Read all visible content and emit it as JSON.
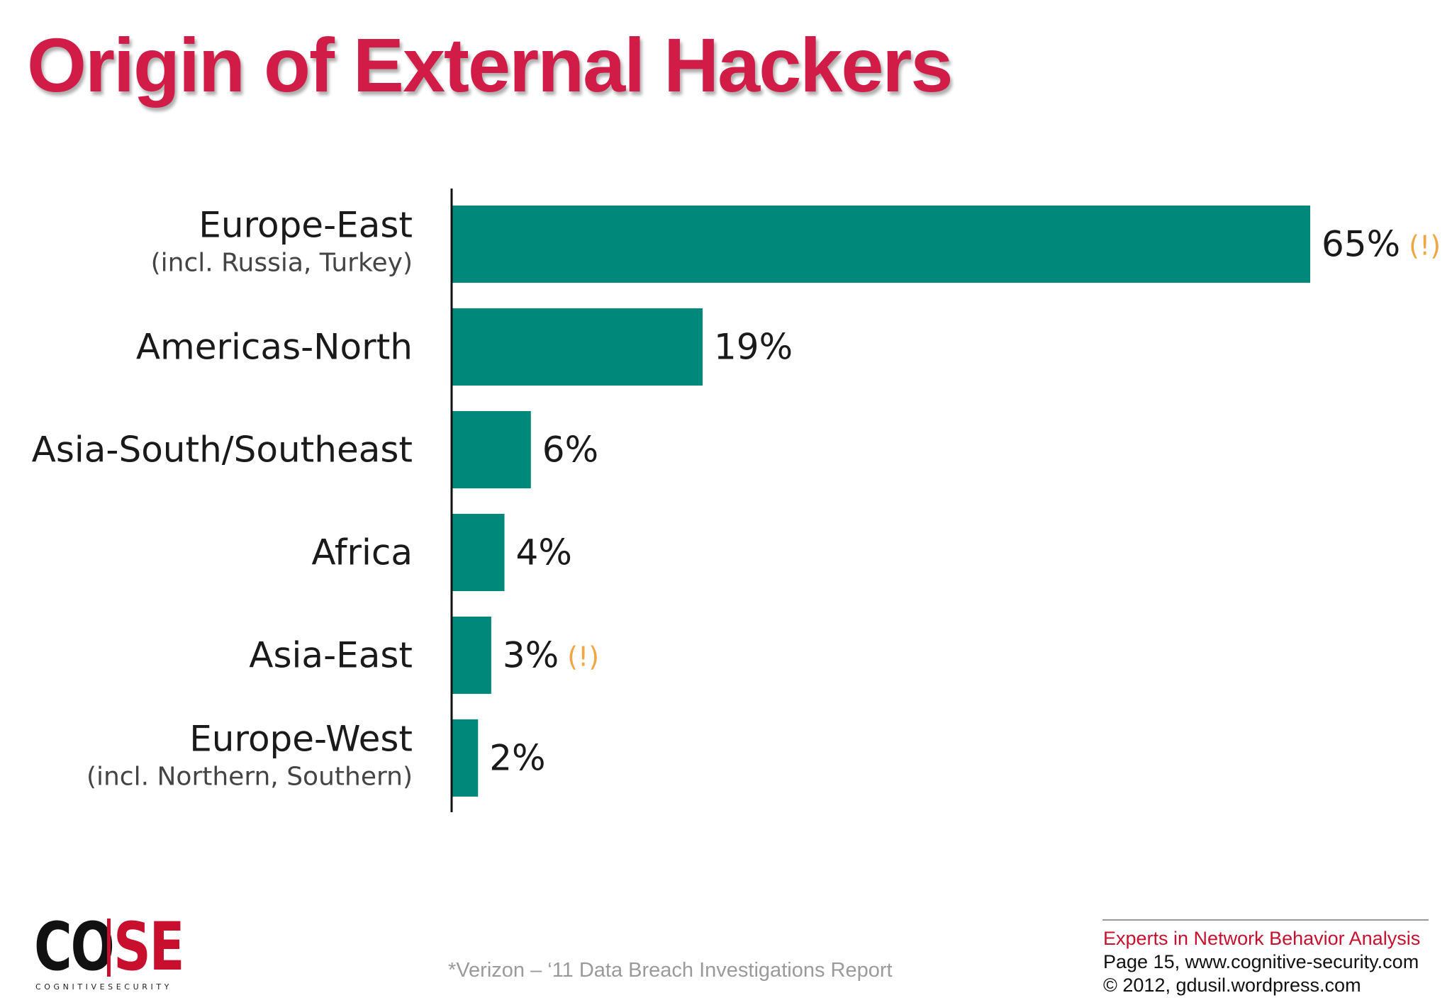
{
  "title": "Origin of External Hackers",
  "chart_data": {
    "type": "bar",
    "orientation": "horizontal",
    "categories": [
      {
        "label": "Europe-East",
        "sublabel": "(incl. Russia, Turkey)",
        "value": 65,
        "value_label": "65%",
        "note": "(!)"
      },
      {
        "label": "Americas-North",
        "sublabel": "",
        "value": 19,
        "value_label": "19%",
        "note": ""
      },
      {
        "label": "Asia-South/Southeast",
        "sublabel": "",
        "value": 6,
        "value_label": "6%",
        "note": ""
      },
      {
        "label": "Africa",
        "sublabel": "",
        "value": 4,
        "value_label": "4%",
        "note": ""
      },
      {
        "label": "Asia-East",
        "sublabel": "",
        "value": 3,
        "value_label": "3%",
        "note": "(!)"
      },
      {
        "label": "Europe-West",
        "sublabel": "(incl. Northern, Southern)",
        "value": 2,
        "value_label": "2%",
        "note": ""
      }
    ],
    "unit": "%",
    "xlim": [
      0,
      100
    ],
    "bar_color": "#00897b",
    "note_color": "#f0a645",
    "grid": false,
    "legend": "none"
  },
  "logo": {
    "left": "CO",
    "right": "SE",
    "subtitle": "COGNITIVESECURITY"
  },
  "source_note": "*Verizon – ‘11 Data Breach Investigations Report",
  "footer": {
    "tagline": "Experts in Network Behavior Analysis",
    "page": "Page 15, www.cognitive-security.com",
    "copyright": "© 2012, gdusil.wordpress.com"
  },
  "colors": {
    "title": "#d01c47",
    "accent": "#c8102e"
  }
}
